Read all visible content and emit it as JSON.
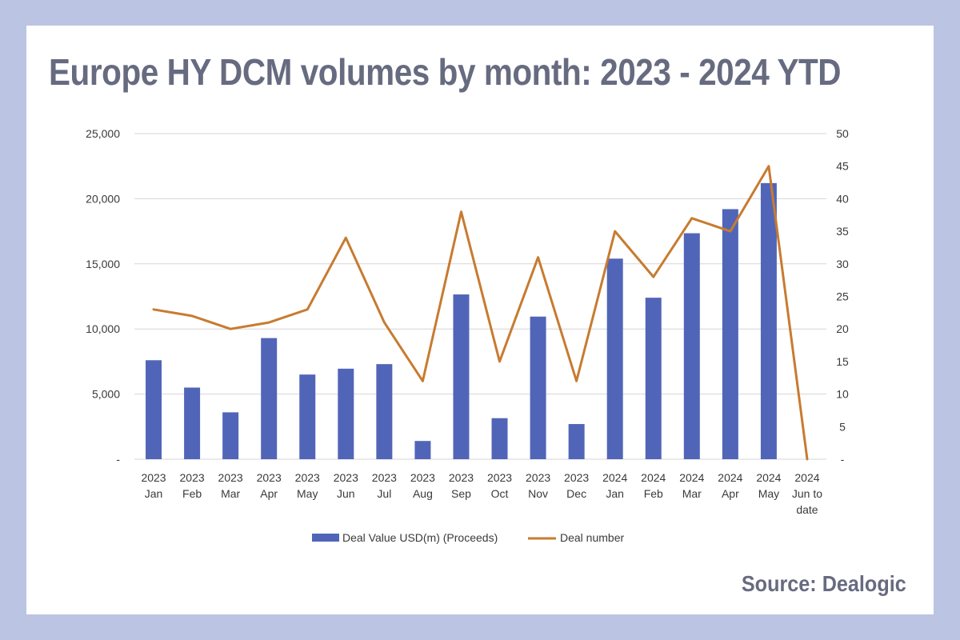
{
  "title": "Europe HY DCM volumes by month: 2023 - 2024 YTD",
  "source": "Source: Dealogic",
  "chart_data": {
    "type": "bar",
    "categories": [
      [
        "2023",
        "Jan"
      ],
      [
        "2023",
        "Feb"
      ],
      [
        "2023",
        "Mar"
      ],
      [
        "2023",
        "Apr"
      ],
      [
        "2023",
        "May"
      ],
      [
        "2023",
        "Jun"
      ],
      [
        "2023",
        "Jul"
      ],
      [
        "2023",
        "Aug"
      ],
      [
        "2023",
        "Sep"
      ],
      [
        "2023",
        "Oct"
      ],
      [
        "2023",
        "Nov"
      ],
      [
        "2023",
        "Dec"
      ],
      [
        "2024",
        "Jan"
      ],
      [
        "2024",
        "Feb"
      ],
      [
        "2024",
        "Mar"
      ],
      [
        "2024",
        "Apr"
      ],
      [
        "2024",
        "May"
      ],
      [
        "2024",
        "Jun to",
        "date"
      ]
    ],
    "series": [
      {
        "name": "Deal Value USD(m) (Proceeds)",
        "type": "bar",
        "axis": "left",
        "color": "#5165b8",
        "values": [
          7600,
          5500,
          3600,
          9300,
          6500,
          6950,
          7300,
          1400,
          12650,
          3150,
          10950,
          2700,
          15400,
          12400,
          17350,
          19200,
          21200,
          0
        ]
      },
      {
        "name": "Deal number",
        "type": "line",
        "axis": "right",
        "color": "#c77b30",
        "values": [
          23,
          22,
          20,
          21,
          23,
          34,
          21,
          12,
          38,
          15,
          31,
          12,
          35,
          28,
          37,
          35,
          45,
          0
        ]
      }
    ],
    "y_left": {
      "range": [
        0,
        25000
      ],
      "ticks": [
        0,
        5000,
        10000,
        15000,
        20000,
        25000
      ],
      "tick_labels": [
        "-",
        "5,000",
        "10,000",
        "15,000",
        "20,000",
        "25,000"
      ]
    },
    "y_right": {
      "range": [
        0,
        50
      ],
      "ticks": [
        0,
        5,
        10,
        15,
        20,
        25,
        30,
        35,
        40,
        45,
        50
      ],
      "tick_labels": [
        "-",
        "5",
        "10",
        "15",
        "20",
        "25",
        "30",
        "35",
        "40",
        "45",
        "50"
      ]
    },
    "grid": true,
    "legend": "bottom"
  }
}
